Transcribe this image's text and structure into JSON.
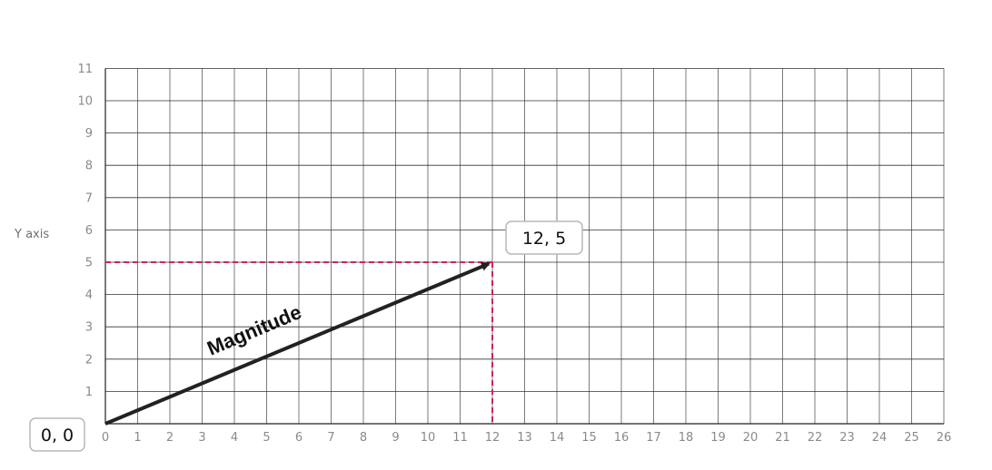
{
  "diagram": {
    "y_axis_label": "Y axis",
    "x_ticks": [
      0,
      1,
      2,
      3,
      4,
      5,
      6,
      7,
      8,
      9,
      10,
      11,
      12,
      13,
      14,
      15,
      16,
      17,
      18,
      19,
      20,
      21,
      22,
      23,
      24,
      25,
      26
    ],
    "y_ticks": [
      1,
      2,
      3,
      4,
      5,
      6,
      7,
      8,
      9,
      10,
      11
    ],
    "origin": {
      "x": 0,
      "y": 0,
      "label": "0, 0"
    },
    "tip": {
      "x": 12,
      "y": 5,
      "label": "12, 5"
    },
    "vector_label": "Magnitude",
    "colors": {
      "grid": "#333333",
      "vector": "#222222",
      "projection": "#d0245a",
      "ticks": "#8a8a8a"
    }
  }
}
